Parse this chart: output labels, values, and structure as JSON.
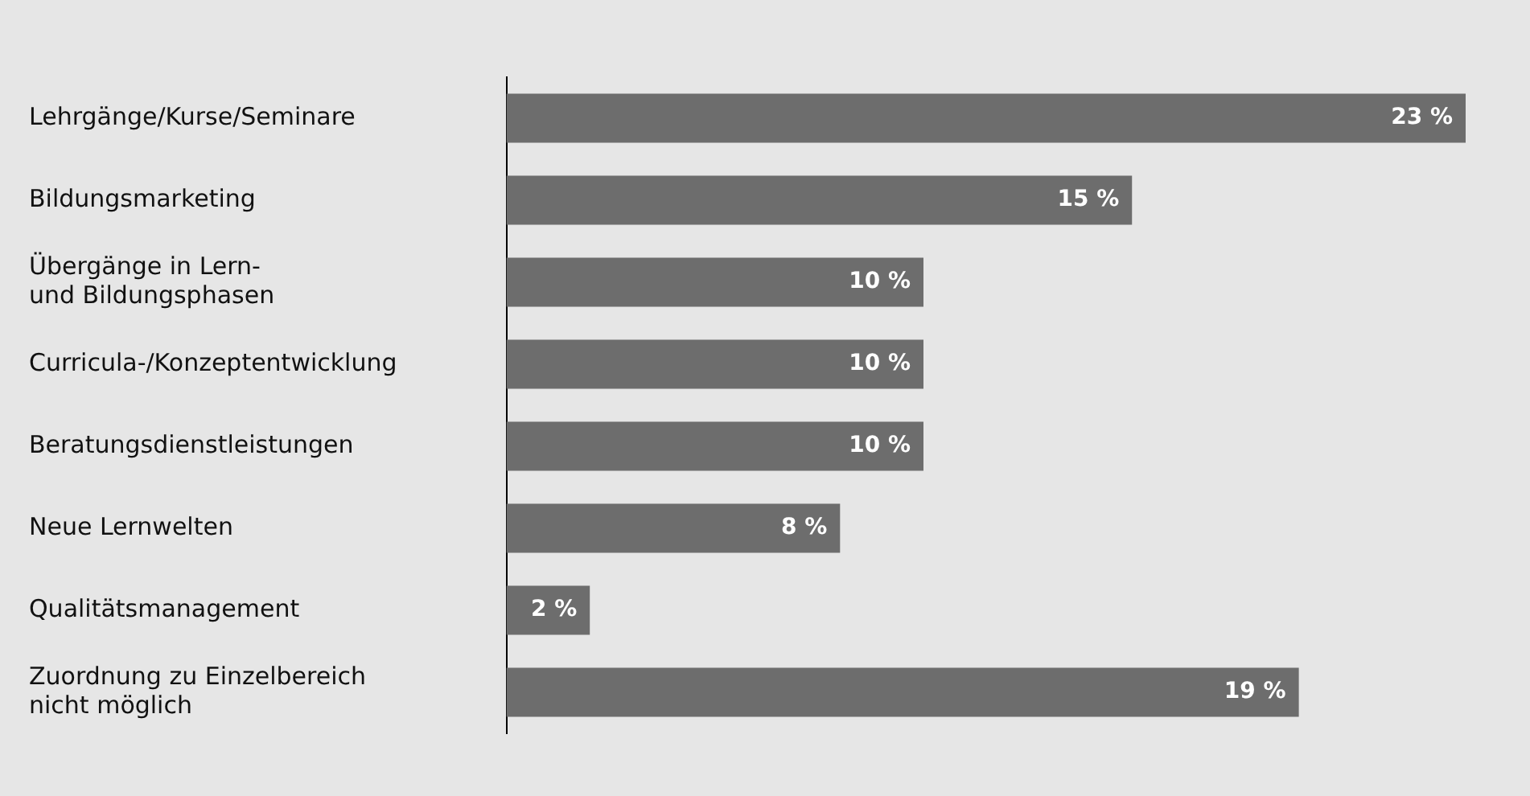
{
  "chart_data": {
    "type": "bar",
    "orientation": "horizontal",
    "categories": [
      "Lehrgänge/Kurse/Seminare",
      "Bildungsmarketing",
      "Übergänge in Lern-\nund Bildungsphasen",
      "Curricula-/Konzeptentwicklung",
      "Beratungsdienstleistungen",
      "Neue Lernwelten",
      "Qualitätsmanagement",
      "Zuordnung zu Einzelbereich\nnicht möglich"
    ],
    "values": [
      23,
      15,
      10,
      10,
      10,
      8,
      2,
      19
    ],
    "value_labels": [
      "23 %",
      "15 %",
      "10 %",
      "10 %",
      "10 %",
      "8 %",
      "2 %",
      "19 %"
    ],
    "color": "#6d6d6d",
    "tick_labels": "y"
  }
}
